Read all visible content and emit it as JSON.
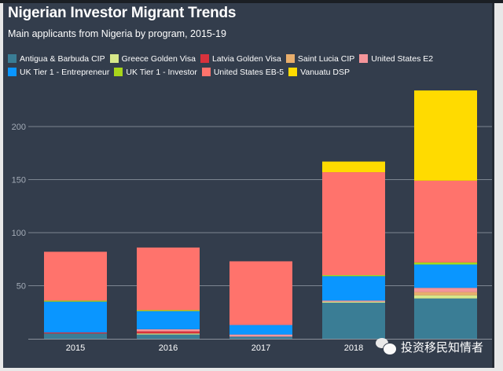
{
  "chart_data": {
    "type": "bar",
    "stacked": true,
    "title": "Nigerian Investor Migrant Trends",
    "subtitle": "Main applicants from Nigeria by program, 2015-19",
    "xlabel": "",
    "ylabel": "",
    "categories": [
      "2015",
      "2016",
      "2017",
      "2018",
      "2019"
    ],
    "xtick_labels": [
      "2015",
      "2016",
      "2017",
      "2018",
      ""
    ],
    "ylim": [
      0,
      235
    ],
    "yticks": [
      50,
      100,
      150,
      200
    ],
    "ytick_labels": [
      "50",
      "100",
      "150",
      "200"
    ],
    "grid": true,
    "legend_position": "top-left",
    "series": [
      {
        "name": "Antigua & Barbuda CIP",
        "color": "#3a7d95",
        "values": [
          5,
          4,
          2,
          34,
          38
        ]
      },
      {
        "name": "Greece Golden Visa",
        "color": "#d7e88a",
        "values": [
          0,
          1,
          0,
          1,
          3
        ]
      },
      {
        "name": "Latvia Golden Visa",
        "color": "#d8323c",
        "values": [
          1,
          2,
          0,
          0,
          0
        ]
      },
      {
        "name": "Saint Lucia CIP",
        "color": "#e8ae6c",
        "values": [
          0,
          0,
          0,
          0,
          3
        ]
      },
      {
        "name": "United States E2",
        "color": "#f4959a",
        "values": [
          0,
          2,
          2,
          1,
          4
        ]
      },
      {
        "name": "UK Tier 1 - Entrepreneur",
        "color": "#0a96ff",
        "values": [
          29,
          17,
          9,
          23,
          22
        ]
      },
      {
        "name": "UK Tier 1 - Investor",
        "color": "#a8d61a",
        "values": [
          1,
          1,
          0,
          1,
          2
        ]
      },
      {
        "name": "United States EB-5",
        "color": "#ff736c",
        "values": [
          46,
          59,
          60,
          97,
          77
        ]
      },
      {
        "name": "Vanuatu DSP",
        "color": "#ffdb00",
        "values": [
          0,
          0,
          0,
          10,
          85
        ]
      }
    ],
    "legend_rows": [
      [
        0,
        1,
        2,
        3,
        4
      ],
      [
        5,
        6,
        7,
        8
      ]
    ]
  },
  "watermark": {
    "icon": "wechat-icon",
    "text": "投资移民知情者"
  }
}
